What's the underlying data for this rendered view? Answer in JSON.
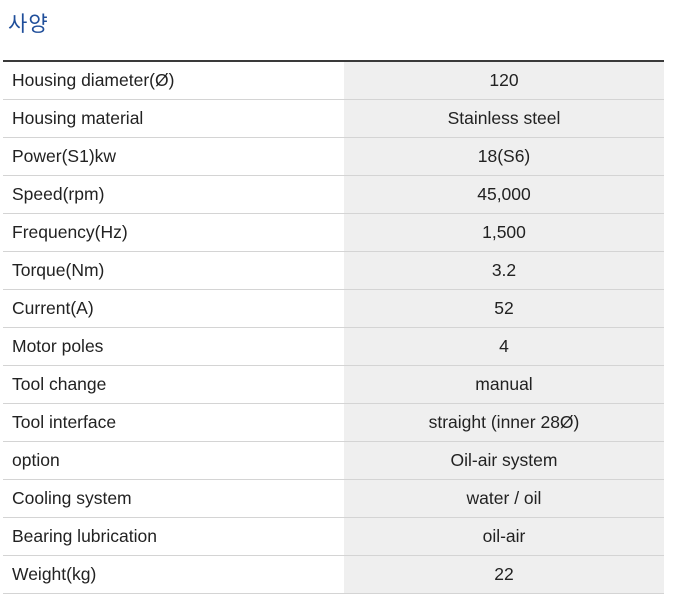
{
  "title": "사양",
  "specs": [
    {
      "label": "Housing diameter(Ø)",
      "value": "120"
    },
    {
      "label": "Housing material",
      "value": "Stainless steel"
    },
    {
      "label": "Power(S1)kw",
      "value": "18(S6)"
    },
    {
      "label": "Speed(rpm)",
      "value": "45,000"
    },
    {
      "label": "Frequency(Hz)",
      "value": "1,500"
    },
    {
      "label": "Torque(Nm)",
      "value": "3.2"
    },
    {
      "label": "Current(A)",
      "value": "52"
    },
    {
      "label": "Motor poles",
      "value": "4"
    },
    {
      "label": "Tool change",
      "value": "manual"
    },
    {
      "label": "Tool interface",
      "value": "straight (inner 28Ø)"
    },
    {
      "label": "option",
      "value": "Oil-air system"
    },
    {
      "label": "Cooling system",
      "value": "water / oil"
    },
    {
      "label": "Bearing lubrication",
      "value": "oil-air"
    },
    {
      "label": "Weight(kg)",
      "value": "22"
    }
  ]
}
